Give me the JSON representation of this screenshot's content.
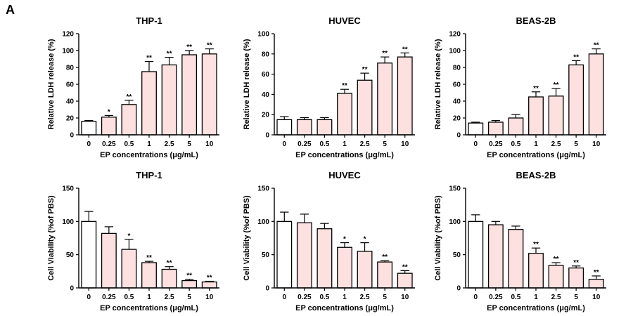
{
  "figure": {
    "panel_label": "A"
  },
  "colors": {
    "control_fill": "#ffffff",
    "treated_fill": "#fde0e0",
    "stroke": "#000000"
  },
  "chart_data": [
    {
      "type": "bar",
      "title": "THP-1",
      "xlabel": "EP concentrations (μg/mL)",
      "ylabel": "Relative LDH release (%)",
      "categories": [
        "0",
        "0.25",
        "0.5",
        "1",
        "2.5",
        "5",
        "10"
      ],
      "values": [
        16,
        21,
        36,
        75,
        83,
        95,
        96
      ],
      "errors": [
        1,
        2,
        5,
        12,
        9,
        5,
        6
      ],
      "significance": [
        "",
        "*",
        "**",
        "**",
        "**",
        "**",
        "**"
      ],
      "ylim": [
        0,
        120
      ],
      "yticks": [
        0,
        20,
        40,
        60,
        80,
        100,
        120
      ]
    },
    {
      "type": "bar",
      "title": "HUVEC",
      "xlabel": "EP concentrations (μg/mL)",
      "ylabel": "Relative LDH release (%)",
      "categories": [
        "0",
        "0.25",
        "0.5",
        "1",
        "2.5",
        "5",
        "10"
      ],
      "values": [
        15,
        15,
        15,
        41,
        54,
        71,
        77
      ],
      "errors": [
        3,
        2,
        2,
        4,
        7,
        6,
        4
      ],
      "significance": [
        "",
        "",
        "",
        "**",
        "**",
        "**",
        "**"
      ],
      "ylim": [
        0,
        100
      ],
      "yticks": [
        0,
        20,
        40,
        60,
        80,
        100
      ]
    },
    {
      "type": "bar",
      "title": "BEAS-2B",
      "xlabel": "EP concentrations (μg/mL)",
      "ylabel": "Relative LDH release (%)",
      "categories": [
        "0",
        "0.25",
        "0.5",
        "1",
        "2.5",
        "5",
        "10"
      ],
      "values": [
        14,
        15,
        20,
        45,
        46,
        83,
        96
      ],
      "errors": [
        1,
        2,
        4,
        6,
        9,
        5,
        6
      ],
      "significance": [
        "",
        "",
        "",
        "**",
        "**",
        "**",
        "**"
      ],
      "ylim": [
        0,
        120
      ],
      "yticks": [
        0,
        20,
        40,
        60,
        80,
        100,
        120
      ]
    },
    {
      "type": "bar",
      "title": "THP-1",
      "xlabel": "EP concentrations (μg/mL)",
      "ylabel": "Cell Viability (%of PBS)",
      "categories": [
        "0",
        "0.25",
        "0.5",
        "1",
        "2.5",
        "5",
        "10"
      ],
      "values": [
        100,
        82,
        58,
        38,
        28,
        11,
        9
      ],
      "errors": [
        15,
        10,
        15,
        2,
        4,
        2,
        1
      ],
      "significance": [
        "",
        "",
        "*",
        "**",
        "**",
        "**",
        "**"
      ],
      "ylim": [
        0,
        150
      ],
      "yticks": [
        0,
        50,
        100,
        150
      ]
    },
    {
      "type": "bar",
      "title": "HUVEC",
      "xlabel": "EP concentrations (μg/mL)",
      "ylabel": "Cell Viability (%of PBS)",
      "categories": [
        "0",
        "0.25",
        "0.5",
        "1",
        "2.5",
        "5",
        "10"
      ],
      "values": [
        100,
        98,
        89,
        61,
        55,
        39,
        22
      ],
      "errors": [
        14,
        13,
        8,
        7,
        13,
        2,
        4
      ],
      "significance": [
        "",
        "",
        "",
        "*",
        "*",
        "**",
        "**"
      ],
      "ylim": [
        0,
        150
      ],
      "yticks": [
        0,
        50,
        100,
        150
      ]
    },
    {
      "type": "bar",
      "title": "BEAS-2B",
      "xlabel": "EP concentrations (μg/mL)",
      "ylabel": "Cell Viability (%of PBS)",
      "categories": [
        "0",
        "0.25",
        "0.5",
        "1",
        "2.5",
        "5",
        "10"
      ],
      "values": [
        100,
        95,
        88,
        52,
        34,
        30,
        13
      ],
      "errors": [
        10,
        5,
        5,
        8,
        4,
        3,
        5
      ],
      "significance": [
        "",
        "",
        "",
        "**",
        "**",
        "**",
        "**"
      ],
      "ylim": [
        0,
        150
      ],
      "yticks": [
        0,
        50,
        100,
        150
      ]
    }
  ]
}
